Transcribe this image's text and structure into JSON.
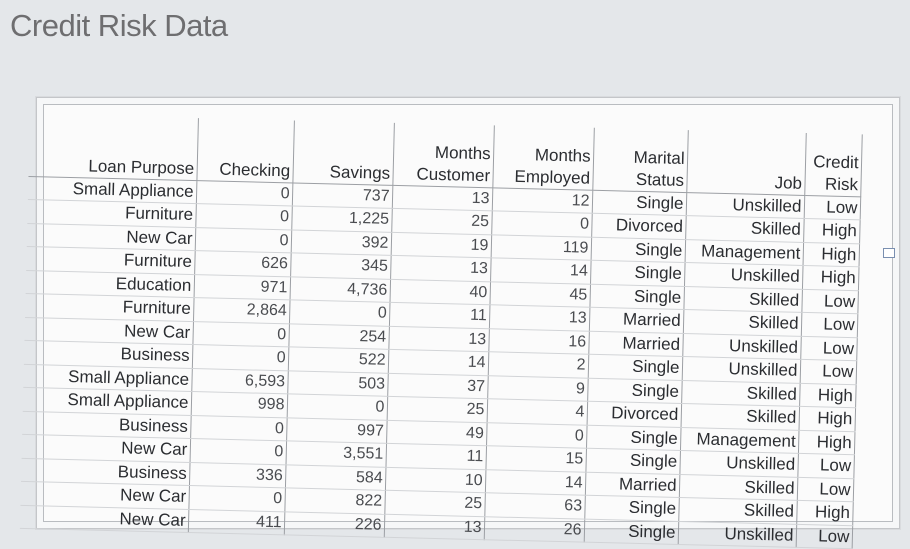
{
  "title": "Credit Risk Data",
  "table": {
    "headers": [
      [
        "",
        "Loan Purpose"
      ],
      [
        "",
        "Checking"
      ],
      [
        "",
        "Savings"
      ],
      [
        "Months",
        "Customer"
      ],
      [
        "Months",
        "Employed"
      ],
      [
        "Marital",
        "Status"
      ],
      [
        "",
        "Job"
      ],
      [
        "Credit",
        "Risk"
      ]
    ],
    "rows": [
      [
        "Small Appliance",
        "0",
        "737",
        "13",
        "12",
        "Single",
        "Unskilled",
        "Low"
      ],
      [
        "Furniture",
        "0",
        "1,225",
        "25",
        "0",
        "Divorced",
        "Skilled",
        "High"
      ],
      [
        "New Car",
        "0",
        "392",
        "19",
        "119",
        "Single",
        "Management",
        "High"
      ],
      [
        "Furniture",
        "626",
        "345",
        "13",
        "14",
        "Single",
        "Unskilled",
        "High"
      ],
      [
        "Education",
        "971",
        "4,736",
        "40",
        "45",
        "Single",
        "Skilled",
        "Low"
      ],
      [
        "Furniture",
        "2,864",
        "0",
        "11",
        "13",
        "Married",
        "Skilled",
        "Low"
      ],
      [
        "New Car",
        "0",
        "254",
        "13",
        "16",
        "Married",
        "Unskilled",
        "Low"
      ],
      [
        "Business",
        "0",
        "522",
        "14",
        "2",
        "Single",
        "Unskilled",
        "Low"
      ],
      [
        "Small Appliance",
        "6,593",
        "503",
        "37",
        "9",
        "Single",
        "Skilled",
        "High"
      ],
      [
        "Small Appliance",
        "998",
        "0",
        "25",
        "4",
        "Divorced",
        "Skilled",
        "High"
      ],
      [
        "Business",
        "0",
        "997",
        "49",
        "0",
        "Single",
        "Management",
        "High"
      ],
      [
        "New Car",
        "0",
        "3,551",
        "11",
        "15",
        "Single",
        "Unskilled",
        "Low"
      ],
      [
        "Business",
        "336",
        "584",
        "10",
        "14",
        "Married",
        "Skilled",
        "Low"
      ],
      [
        "New Car",
        "0",
        "822",
        "25",
        "63",
        "Single",
        "Skilled",
        "High"
      ],
      [
        "New Car",
        "411",
        "226",
        "13",
        "26",
        "Single",
        "Unskilled",
        "Low"
      ]
    ]
  }
}
